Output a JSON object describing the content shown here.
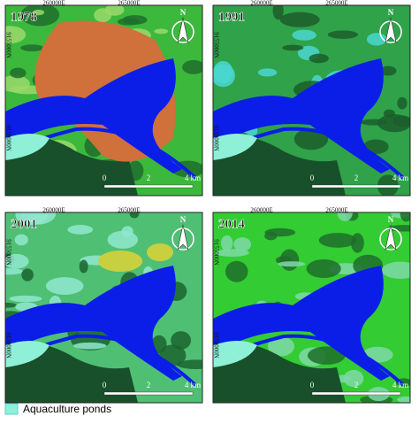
{
  "panels": [
    {
      "year": "1978",
      "x_labels": [
        "260000E",
        "265000E"
      ],
      "y_labels": [
        "9155000N",
        "9150000N"
      ],
      "scale": [
        "0",
        "2",
        "4 km"
      ],
      "north": "N"
    },
    {
      "year": "1991",
      "x_labels": [
        "260000E",
        "265000E"
      ],
      "y_labels": [
        "9155000N",
        "9150000N"
      ],
      "scale": [
        "0",
        "2",
        "4 km"
      ],
      "north": "N"
    },
    {
      "year": "2001",
      "x_labels": [
        "260000E",
        "265000E"
      ],
      "y_labels": [
        "9155000N",
        "9150000N"
      ],
      "scale": [
        "0",
        "2",
        "4 km"
      ],
      "north": "N"
    },
    {
      "year": "2014",
      "x_labels": [
        "260000E",
        "265000E"
      ],
      "y_labels": [
        "9155000N",
        "9150000N"
      ],
      "scale": [
        "0",
        "2",
        "4 km"
      ],
      "north": "N"
    }
  ],
  "legend": {
    "label": "Aquaculture ponds"
  }
}
